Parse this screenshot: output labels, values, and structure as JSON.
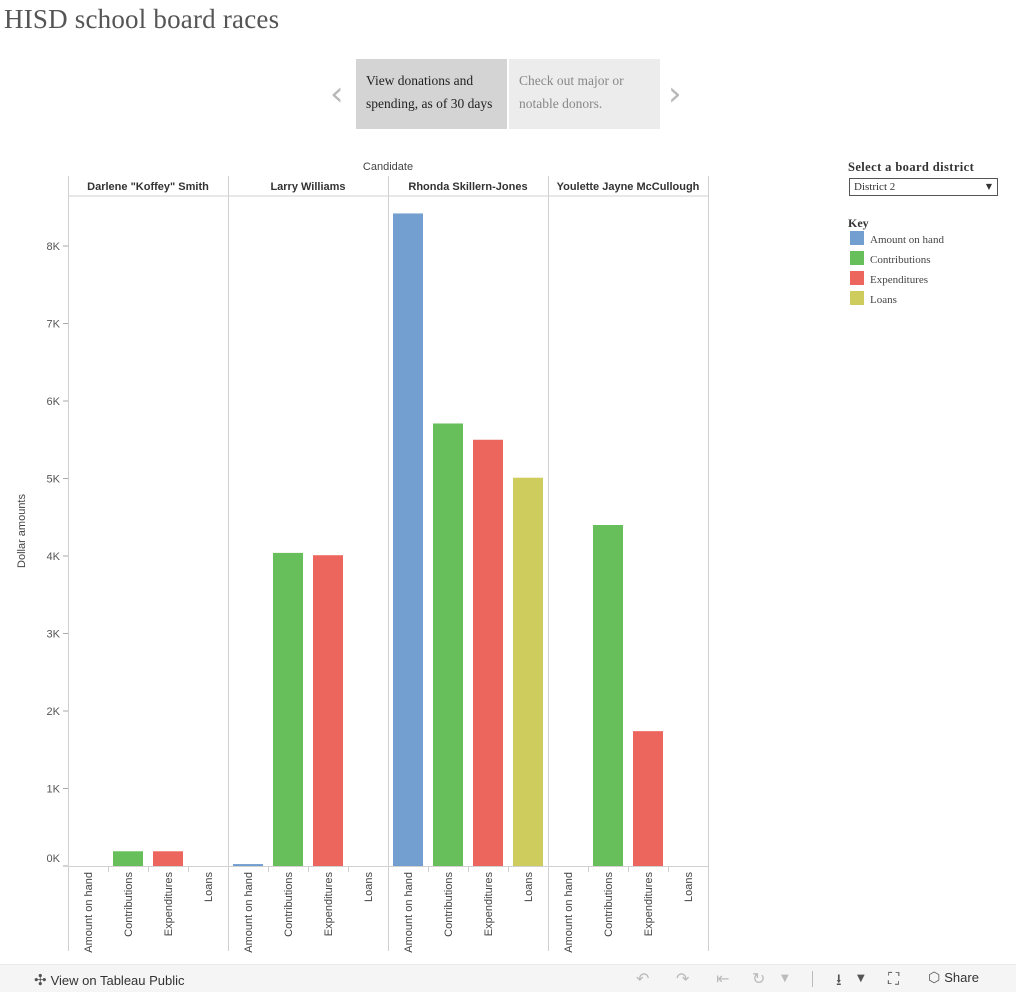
{
  "page": {
    "title": "HISD school board races"
  },
  "story": {
    "points": [
      {
        "label": "View donations and spending, as of 30 days"
      },
      {
        "label": "Check out major or notable donors."
      }
    ],
    "prev_icon": "chevron-left-icon",
    "next_icon": "chevron-right-icon"
  },
  "filter": {
    "title": "Select a board district",
    "value": "District 2"
  },
  "key": {
    "title": "Key",
    "items": [
      {
        "label": "Amount on hand",
        "color": "#729fcf"
      },
      {
        "label": "Contributions",
        "color": "#67bf5c"
      },
      {
        "label": "Expenditures",
        "color": "#ed665d"
      },
      {
        "label": "Loans",
        "color": "#cdcc5d"
      }
    ]
  },
  "chart_data": {
    "type": "bar",
    "column_header": "Candidate",
    "ylabel": "Dollar amounts",
    "ylim": [
      0,
      8800
    ],
    "yticks": [
      0,
      1000,
      2000,
      3000,
      4000,
      5000,
      6000,
      7000,
      8000
    ],
    "ytick_labels": [
      "0K",
      "1K",
      "2K",
      "3K",
      "4K",
      "5K",
      "6K",
      "7K",
      "8K"
    ],
    "categories": [
      "Amount on hand",
      "Contributions",
      "Expenditures",
      "Loans"
    ],
    "colors": [
      "#729fcf",
      "#67bf5c",
      "#ed665d",
      "#cdcc5d"
    ],
    "panels": [
      {
        "name": "Darlene \"Koffey\" Smith",
        "values": [
          0,
          190,
          190,
          0
        ]
      },
      {
        "name": "Larry Williams",
        "values": [
          25,
          4040,
          4010,
          0
        ]
      },
      {
        "name": "Rhonda Skillern-Jones",
        "values": [
          8420,
          5710,
          5500,
          5010
        ]
      },
      {
        "name": "Youlette Jayne McCullough",
        "values": [
          0,
          4400,
          1740,
          0
        ]
      }
    ]
  },
  "footer": {
    "view_label": "View on Tableau Public",
    "share_label": "Share"
  }
}
